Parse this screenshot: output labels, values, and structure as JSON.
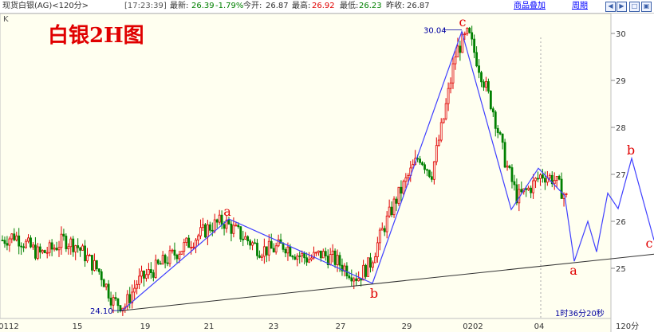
{
  "header": {
    "instrument": "现货白银(AG)<120分>",
    "time": "[17:23:39]",
    "latest_label": "最新:",
    "latest": "26.39",
    "change": "-1.79%",
    "open_label": "今开:",
    "open": "26.87",
    "high_label": "最高:",
    "high": "26.92",
    "low_label": "最低:",
    "low": "26.23",
    "prev_label": "昨收:",
    "prev": "26.87",
    "overlay_link": "商品叠加",
    "period_link": "周期"
  },
  "window_buttons": {
    "prev": "◀",
    "next": "▶",
    "restore": "□",
    "max": "▣"
  },
  "chart_title": "白银2H图",
  "k_label": "K",
  "colors": {
    "up": "#e00000",
    "down": "#008000",
    "wave": "#4040ff",
    "trend": "#333333",
    "annotation": "#e00000"
  },
  "chart_data": {
    "type": "candlestick",
    "y_ticks": [
      "25",
      "26",
      "27",
      "28",
      "29",
      "30"
    ],
    "y_range": [
      24.0,
      30.4
    ],
    "x_ticks": [
      "0112",
      "15",
      "19",
      "21",
      "23",
      "27",
      "29",
      "0202",
      "04"
    ],
    "period_label": "120分",
    "countdown": "1时36分20秒",
    "max_label": "30.04",
    "min_label": "24.10",
    "wave_labels": [
      "a",
      "b",
      "c",
      "a",
      "b",
      "c"
    ],
    "waypoints_close": [
      25.6,
      25.7,
      25.5,
      25.3,
      25.4,
      25.6,
      25.5,
      25.2,
      24.9,
      24.3,
      24.2,
      24.7,
      24.9,
      25.1,
      25.3,
      25.5,
      25.7,
      25.9,
      26.0,
      25.8,
      25.6,
      25.4,
      25.4,
      25.5,
      25.3,
      25.2,
      25.3,
      25.2,
      25.0,
      24.8,
      25.1,
      25.8,
      26.4,
      26.9,
      27.4,
      27.0,
      28.2,
      29.6,
      30.0,
      29.2,
      28.4,
      27.3,
      26.5,
      26.7,
      27.0,
      26.9,
      26.5
    ],
    "wave_path": [
      24.1,
      26.05,
      24.68,
      30.04,
      26.25,
      27.13,
      26.55
    ],
    "projection_path": [
      26.55,
      25.15,
      26.0,
      25.35,
      26.6,
      26.27,
      27.34,
      25.6
    ],
    "trendline": [
      24.1,
      25.3
    ]
  }
}
